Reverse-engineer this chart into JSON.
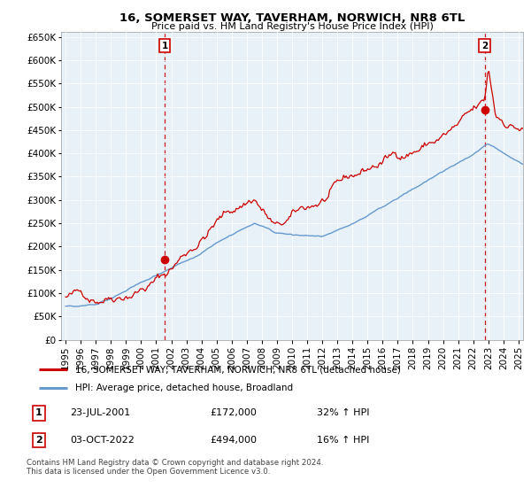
{
  "title": "16, SOMERSET WAY, TAVERHAM, NORWICH, NR8 6TL",
  "subtitle": "Price paid vs. HM Land Registry's House Price Index (HPI)",
  "legend_line1": "16, SOMERSET WAY, TAVERHAM, NORWICH, NR8 6TL (detached house)",
  "legend_line2": "HPI: Average price, detached house, Broadland",
  "annotation1_label": "1",
  "annotation1_date": "23-JUL-2001",
  "annotation1_price": "£172,000",
  "annotation1_hpi": "32% ↑ HPI",
  "annotation2_label": "2",
  "annotation2_date": "03-OCT-2022",
  "annotation2_price": "£494,000",
  "annotation2_hpi": "16% ↑ HPI",
  "footnote": "Contains HM Land Registry data © Crown copyright and database right 2024.\nThis data is licensed under the Open Government Licence v3.0.",
  "sale_color": "#cc0000",
  "hpi_color": "#6699cc",
  "chart_bg": "#e8f0f8",
  "grid_color": "#ffffff",
  "ylim": [
    0,
    660000
  ],
  "yticks": [
    0,
    50000,
    100000,
    150000,
    200000,
    250000,
    300000,
    350000,
    400000,
    450000,
    500000,
    550000,
    600000,
    650000
  ],
  "sale1_x": 2001.56,
  "sale1_y": 172000,
  "sale2_x": 2022.75,
  "sale2_y": 494000,
  "xlim_left": 1994.7,
  "xlim_right": 2025.3
}
